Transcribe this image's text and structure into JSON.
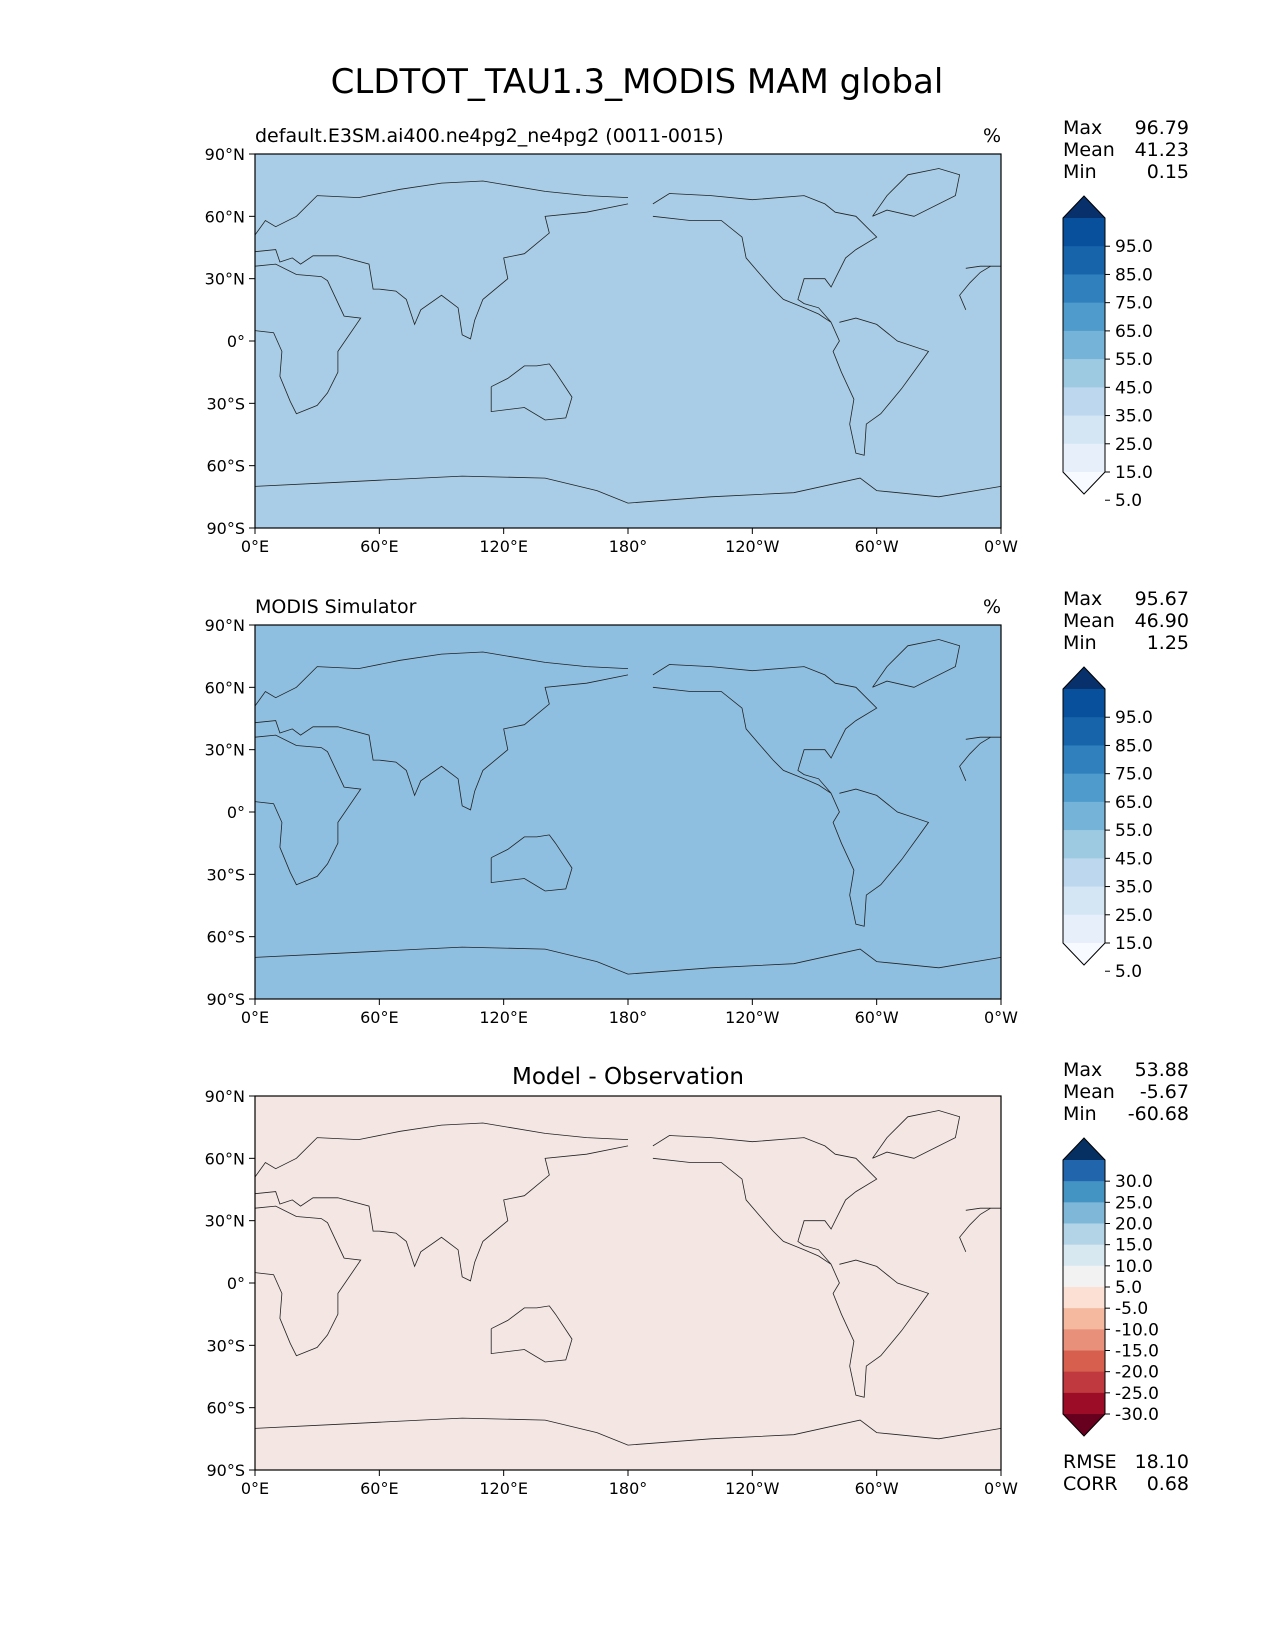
{
  "figure": {
    "title": "CLDTOT_TAU1.3_MODIS MAM global",
    "x_ticks": [
      "0°E",
      "60°E",
      "120°E",
      "180°",
      "120°W",
      "60°W",
      "0°W"
    ],
    "y_ticks": [
      "90°N",
      "60°N",
      "30°N",
      "0°",
      "30°S",
      "60°S",
      "90°S"
    ]
  },
  "panels": [
    {
      "id": "model",
      "title_left": "default.E3SM.ai400.ne4pg2_ne4pg2 (0011-0015)",
      "title_center": "",
      "units": "%",
      "stats": [
        {
          "label": "Max",
          "value": "96.79"
        },
        {
          "label": "Mean",
          "value": "41.23"
        },
        {
          "label": "Min",
          "value": "0.15"
        }
      ],
      "colorbar": {
        "labels": [
          "95.0",
          "85.0",
          "75.0",
          "65.0",
          "55.0",
          "45.0",
          "35.0",
          "25.0",
          "15.0",
          "5.0"
        ],
        "colors": [
          "#f7fbff",
          "#e7f0fa",
          "#d4e5f4",
          "#bdd7ee",
          "#9ecae1",
          "#75b4d8",
          "#4f9bcb",
          "#3080bd",
          "#1764ab",
          "#08509b",
          "#08306b"
        ]
      },
      "map_fill": "#a9cde6",
      "bottom_stats": []
    },
    {
      "id": "obs",
      "title_left": "MODIS Simulator",
      "title_center": "",
      "units": "%",
      "stats": [
        {
          "label": "Max",
          "value": "95.67"
        },
        {
          "label": "Mean",
          "value": "46.90"
        },
        {
          "label": "Min",
          "value": "1.25"
        }
      ],
      "colorbar": {
        "labels": [
          "95.0",
          "85.0",
          "75.0",
          "65.0",
          "55.0",
          "45.0",
          "35.0",
          "25.0",
          "15.0",
          "5.0"
        ],
        "colors": [
          "#f7fbff",
          "#e7f0fa",
          "#d4e5f4",
          "#bdd7ee",
          "#9ecae1",
          "#75b4d8",
          "#4f9bcb",
          "#3080bd",
          "#1764ab",
          "#08509b",
          "#08306b"
        ]
      },
      "map_fill": "#8fbfe0",
      "bottom_stats": []
    },
    {
      "id": "diff",
      "title_left": "",
      "title_center": "Model - Observation",
      "units": "",
      "stats": [
        {
          "label": "Max",
          "value": "53.88"
        },
        {
          "label": "Mean",
          "value": "-5.67"
        },
        {
          "label": "Min",
          "value": "-60.68"
        }
      ],
      "colorbar": {
        "labels": [
          "30.0",
          "25.0",
          "20.0",
          "15.0",
          "10.0",
          "5.0",
          "-5.0",
          "-10.0",
          "-15.0",
          "-20.0",
          "-25.0",
          "-30.0"
        ],
        "colors": [
          "#67001f",
          "#9d0c27",
          "#c0393f",
          "#d6604d",
          "#e8907a",
          "#f4b99f",
          "#fbe0d3",
          "#f2f2f2",
          "#d8e8f1",
          "#b3d4e7",
          "#7fb7d8",
          "#4393c3",
          "#2166ac",
          "#053061"
        ]
      },
      "map_fill": "#f3e6e3",
      "bottom_stats": [
        {
          "label": "RMSE",
          "value": "18.10"
        },
        {
          "label": "CORR",
          "value": "0.68"
        }
      ]
    }
  ]
}
